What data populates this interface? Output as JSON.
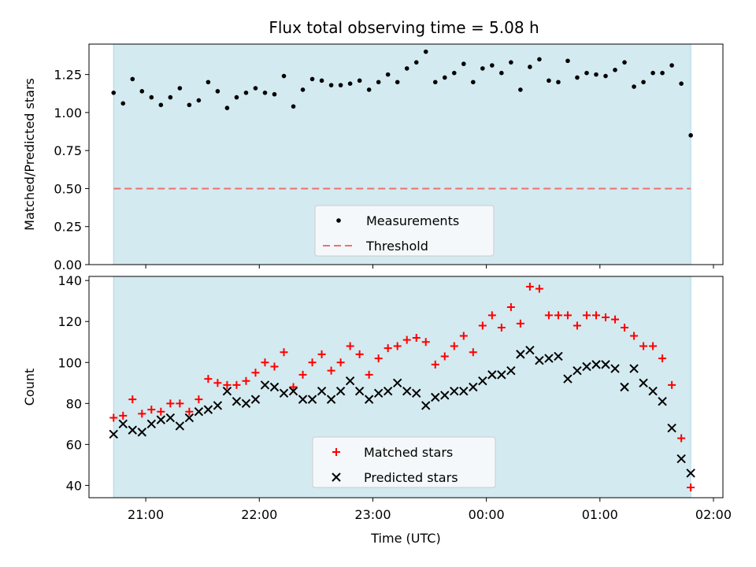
{
  "chart_data": [
    {
      "type": "scatter",
      "title": "Flux total observing time = 5.08 h",
      "xlabel": "",
      "ylabel": "Matched/Predicted stars",
      "ylim": [
        0,
        1.45
      ],
      "yticks": [
        "0.00",
        "0.25",
        "0.50",
        "0.75",
        "1.00",
        "1.25"
      ],
      "xlim": [
        "20:30",
        "02:00"
      ],
      "xticks": [
        "21:00",
        "22:00",
        "23:00",
        "00:00",
        "01:00",
        "02:00"
      ],
      "observing_window": [
        "20:43",
        "01:48"
      ],
      "threshold": 0.5,
      "legend": {
        "placement": "lower center",
        "entries": [
          "Measurements",
          "Threshold"
        ]
      },
      "series": [
        {
          "name": "Measurements",
          "color": "#000000",
          "x": [
            "20:43",
            "20:48",
            "20:53",
            "20:58",
            "21:03",
            "21:08",
            "21:13",
            "21:18",
            "21:23",
            "21:28",
            "21:33",
            "21:38",
            "21:43",
            "21:48",
            "21:53",
            "21:58",
            "22:03",
            "22:08",
            "22:13",
            "22:18",
            "22:23",
            "22:28",
            "22:33",
            "22:38",
            "22:43",
            "22:48",
            "22:53",
            "22:58",
            "23:03",
            "23:08",
            "23:13",
            "23:18",
            "23:23",
            "23:28",
            "23:33",
            "23:38",
            "23:43",
            "23:48",
            "23:53",
            "23:58",
            "00:03",
            "00:08",
            "00:13",
            "00:18",
            "00:23",
            "00:28",
            "00:33",
            "00:38",
            "00:43",
            "00:48",
            "00:53",
            "00:58",
            "01:03",
            "01:08",
            "01:13",
            "01:18",
            "01:23",
            "01:28",
            "01:33",
            "01:38",
            "01:43",
            "01:48"
          ],
          "y": [
            1.13,
            1.06,
            1.22,
            1.14,
            1.1,
            1.05,
            1.1,
            1.16,
            1.05,
            1.08,
            1.2,
            1.14,
            1.03,
            1.1,
            1.13,
            1.16,
            1.13,
            1.12,
            1.24,
            1.04,
            1.15,
            1.22,
            1.21,
            1.18,
            1.18,
            1.19,
            1.21,
            1.15,
            1.2,
            1.25,
            1.2,
            1.29,
            1.33,
            1.4,
            1.2,
            1.23,
            1.26,
            1.32,
            1.2,
            1.29,
            1.31,
            1.26,
            1.33,
            1.15,
            1.3,
            1.35,
            1.21,
            1.2,
            1.34,
            1.23,
            1.26,
            1.25,
            1.24,
            1.28,
            1.33,
            1.17,
            1.2,
            1.26,
            1.26,
            1.31,
            1.19,
            0.85
          ]
        }
      ]
    },
    {
      "type": "scatter",
      "title": "",
      "xlabel": "Time (UTC)",
      "ylabel": "Count",
      "ylim": [
        34,
        142
      ],
      "yticks": [
        "40",
        "60",
        "80",
        "100",
        "120",
        "140"
      ],
      "xlim": [
        "20:30",
        "02:00"
      ],
      "xticks": [
        "21:00",
        "22:00",
        "23:00",
        "00:00",
        "01:00",
        "02:00"
      ],
      "observing_window": [
        "20:43",
        "01:48"
      ],
      "legend": {
        "placement": "lower center",
        "entries": [
          "Matched stars",
          "Predicted stars"
        ]
      },
      "series": [
        {
          "name": "Matched stars",
          "color": "#ff0000",
          "marker": "plus",
          "x": [
            "20:43",
            "20:48",
            "20:53",
            "20:58",
            "21:03",
            "21:08",
            "21:13",
            "21:18",
            "21:23",
            "21:28",
            "21:33",
            "21:38",
            "21:43",
            "21:48",
            "21:53",
            "21:58",
            "22:03",
            "22:08",
            "22:13",
            "22:18",
            "22:23",
            "22:28",
            "22:33",
            "22:38",
            "22:43",
            "22:48",
            "22:53",
            "22:58",
            "23:03",
            "23:08",
            "23:13",
            "23:18",
            "23:23",
            "23:28",
            "23:33",
            "23:38",
            "23:43",
            "23:48",
            "23:53",
            "23:58",
            "00:03",
            "00:08",
            "00:13",
            "00:18",
            "00:23",
            "00:28",
            "00:33",
            "00:38",
            "00:43",
            "00:48",
            "00:53",
            "00:58",
            "01:03",
            "01:08",
            "01:13",
            "01:18",
            "01:23",
            "01:28",
            "01:33",
            "01:38",
            "01:43",
            "01:48"
          ],
          "y": [
            73,
            74,
            82,
            75,
            77,
            76,
            80,
            80,
            76,
            82,
            92,
            90,
            89,
            89,
            91,
            95,
            100,
            98,
            105,
            88,
            94,
            100,
            104,
            96,
            100,
            108,
            104,
            94,
            102,
            107,
            108,
            111,
            112,
            110,
            99,
            103,
            108,
            113,
            105,
            118,
            123,
            117,
            127,
            119,
            137,
            136,
            123,
            123,
            123,
            118,
            123,
            123,
            122,
            121,
            117,
            113,
            108,
            108,
            102,
            89,
            63,
            39
          ]
        },
        {
          "name": "Predicted stars",
          "color": "#000000",
          "marker": "x",
          "x": [
            "20:43",
            "20:48",
            "20:53",
            "20:58",
            "21:03",
            "21:08",
            "21:13",
            "21:18",
            "21:23",
            "21:28",
            "21:33",
            "21:38",
            "21:43",
            "21:48",
            "21:53",
            "21:58",
            "22:03",
            "22:08",
            "22:13",
            "22:18",
            "22:23",
            "22:28",
            "22:33",
            "22:38",
            "22:43",
            "22:48",
            "22:53",
            "22:58",
            "23:03",
            "23:08",
            "23:13",
            "23:18",
            "23:23",
            "23:28",
            "23:33",
            "23:38",
            "23:43",
            "23:48",
            "23:53",
            "23:58",
            "00:03",
            "00:08",
            "00:13",
            "00:18",
            "00:23",
            "00:28",
            "00:33",
            "00:38",
            "00:43",
            "00:48",
            "00:53",
            "00:58",
            "01:03",
            "01:08",
            "01:13",
            "01:18",
            "01:23",
            "01:28",
            "01:33",
            "01:38",
            "01:43",
            "01:48"
          ],
          "y": [
            65,
            70,
            67,
            66,
            70,
            72,
            73,
            69,
            73,
            76,
            77,
            79,
            86,
            81,
            80,
            82,
            89,
            88,
            85,
            86,
            82,
            82,
            86,
            82,
            86,
            91,
            86,
            82,
            85,
            86,
            90,
            86,
            85,
            79,
            83,
            84,
            86,
            86,
            88,
            91,
            94,
            94,
            96,
            104,
            106,
            101,
            102,
            103,
            92,
            96,
            98,
            99,
            99,
            97,
            88,
            97,
            90,
            86,
            81,
            68,
            53,
            46
          ]
        }
      ]
    }
  ]
}
